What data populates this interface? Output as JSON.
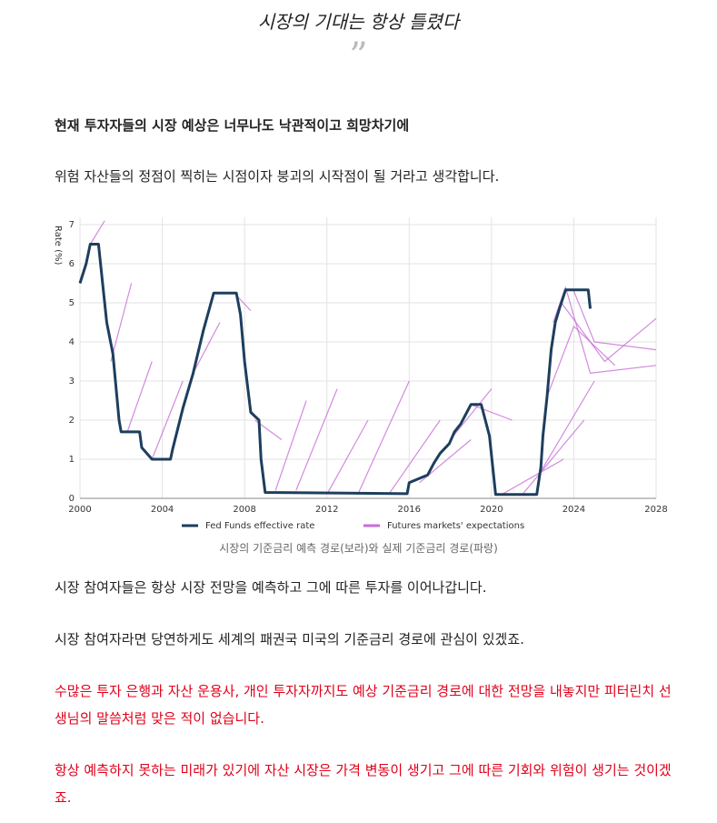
{
  "header": {
    "title": "시장의 기대는 항상 틀렸다",
    "quote_mark": "”"
  },
  "paragraphs": [
    "현재 투자자들의 시장 예상은 너무나도 낙관적이고 희망차기에",
    "위험 자산들의 정점이 찍히는 시점이자 붕괴의 시작점이 될 거라고 생각합니다."
  ],
  "chart_data": {
    "type": "line",
    "ylabel": "Rate (%)",
    "xlim": [
      2000,
      2028
    ],
    "xticks": [
      2000,
      2004,
      2008,
      2012,
      2016,
      2020,
      2024,
      2028
    ],
    "ylim": [
      0,
      7
    ],
    "yticks": [
      0,
      1,
      2,
      3,
      4,
      5,
      6,
      7
    ],
    "grid": true,
    "series": [
      {
        "name": "Fed Funds effective rate",
        "color": "#1d3e5e",
        "x": [
          2000,
          2000.3,
          2000.5,
          2000.9,
          2001.0,
          2001.3,
          2001.6,
          2001.9,
          2002,
          2002.9,
          2003,
          2003.5,
          2004.4,
          2004.5,
          2005,
          2005.5,
          2006,
          2006.5,
          2007.6,
          2007.8,
          2008,
          2008.3,
          2008.7,
          2008.8,
          2009,
          2015.9,
          2016,
          2016.9,
          2017.2,
          2017.5,
          2017.95,
          2018.2,
          2018.5,
          2018.8,
          2019.0,
          2019.5,
          2019.7,
          2019.9,
          2020.2,
          2022.2,
          2022.4,
          2022.5,
          2022.7,
          2022.9,
          2023.1,
          2023.3,
          2023.6,
          2024.7,
          2024.8
        ],
        "values": [
          5.5,
          6,
          6.5,
          6.5,
          6.0,
          4.5,
          3.7,
          2.0,
          1.7,
          1.7,
          1.3,
          1.0,
          1.0,
          1.25,
          2.3,
          3.2,
          4.3,
          5.25,
          5.25,
          4.7,
          3.5,
          2.2,
          2.0,
          1.0,
          0.15,
          0.12,
          0.4,
          0.6,
          0.9,
          1.15,
          1.4,
          1.7,
          1.9,
          2.2,
          2.4,
          2.4,
          2.0,
          1.6,
          0.1,
          0.1,
          0.8,
          1.6,
          2.6,
          3.8,
          4.5,
          4.85,
          5.33,
          5.33,
          4.85
        ]
      },
      {
        "name": "Futures markets' expectations",
        "color": "#c86dd7",
        "paths": [
          {
            "x": [
              2000.5,
              2001.2
            ],
            "values": [
              6.5,
              7.1
            ]
          },
          {
            "x": [
              2001.5,
              2002.5
            ],
            "values": [
              3.5,
              5.5
            ]
          },
          {
            "x": [
              2002.3,
              2003.5
            ],
            "values": [
              1.7,
              3.5
            ]
          },
          {
            "x": [
              2003.5,
              2005
            ],
            "values": [
              1.0,
              3.0
            ]
          },
          {
            "x": [
              2005.5,
              2006.8
            ],
            "values": [
              3.2,
              4.5
            ]
          },
          {
            "x": [
              2007.5,
              2008.3
            ],
            "values": [
              5.25,
              4.8
            ]
          },
          {
            "x": [
              2008.5,
              2009.8
            ],
            "values": [
              2.0,
              1.5
            ]
          },
          {
            "x": [
              2009.5,
              2011
            ],
            "values": [
              0.2,
              2.5
            ]
          },
          {
            "x": [
              2010.5,
              2012.5
            ],
            "values": [
              0.2,
              2.8
            ]
          },
          {
            "x": [
              2012,
              2014
            ],
            "values": [
              0.1,
              2.0
            ]
          },
          {
            "x": [
              2013.5,
              2016
            ],
            "values": [
              0.1,
              3.0
            ]
          },
          {
            "x": [
              2015,
              2017.5
            ],
            "values": [
              0.1,
              2.0
            ]
          },
          {
            "x": [
              2016.5,
              2019
            ],
            "values": [
              0.4,
              1.5
            ]
          },
          {
            "x": [
              2018,
              2020
            ],
            "values": [
              1.5,
              2.8
            ]
          },
          {
            "x": [
              2019,
              2021
            ],
            "values": [
              2.4,
              2.0
            ]
          },
          {
            "x": [
              2020.5,
              2023.5
            ],
            "values": [
              0.1,
              1.0
            ]
          },
          {
            "x": [
              2021.5,
              2024.5
            ],
            "values": [
              0.1,
              2.0
            ]
          },
          {
            "x": [
              2022.3,
              2025
            ],
            "values": [
              0.6,
              3.0
            ]
          },
          {
            "x": [
              2022.7,
              2024,
              2026
            ],
            "values": [
              2.6,
              4.4,
              3.4
            ]
          },
          {
            "x": [
              2023.4,
              2025.5,
              2028
            ],
            "values": [
              5.0,
              3.5,
              4.6
            ]
          },
          {
            "x": [
              2024,
              2025,
              2028
            ],
            "values": [
              5.3,
              4.0,
              3.8
            ]
          },
          {
            "x": [
              2023,
              2023.6,
              2024.8,
              2028
            ],
            "values": [
              4.5,
              5.4,
              3.2,
              3.4
            ]
          }
        ]
      }
    ]
  },
  "caption": "시장의 기준금리 예측 경로(보라)와 실제 기준금리 경로(파랑)",
  "body": [
    {
      "text": "시장 참여자들은 항상 시장 전망을 예측하고 그에 따른 투자를 이어나갑니다."
    },
    {
      "text": "시장 참여자라면 당연하게도 세계의 패권국 미국의 기준금리 경로에 관심이 있겠죠."
    },
    {
      "text": "수많은 투자 은행과 자산 운용사, 개인 투자자까지도 예상 기준금리 경로에 대한 전망을 내놓지만 피터린치 선생님의 말씀처럼 맞은 적이 없습니다."
    },
    {
      "text": "항상 예측하지 못하는 미래가 있기에 자산 시장은 가격 변동이 생기고 그에 따른 기회와 위험이 생기는 것이겠죠."
    }
  ]
}
